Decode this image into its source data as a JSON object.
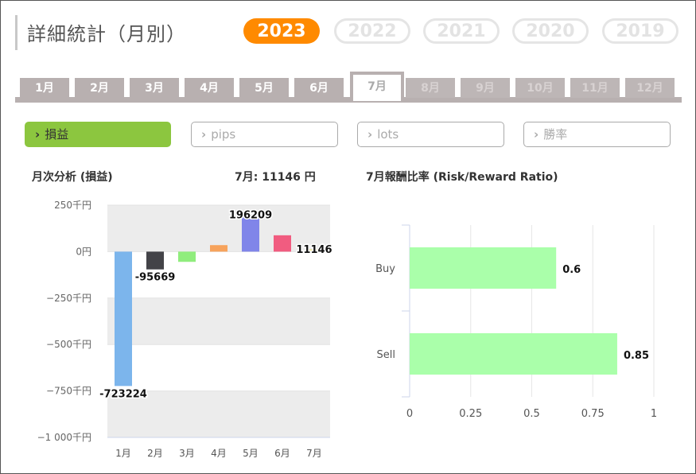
{
  "title": "詳細統計（月別）",
  "years": [
    "2023",
    "2022",
    "2021",
    "2020",
    "2019"
  ],
  "active_year": "2023",
  "months": [
    "1月",
    "2月",
    "3月",
    "4月",
    "5月",
    "6月",
    "7月",
    "8月",
    "9月",
    "10月",
    "11月",
    "12月"
  ],
  "active_month": "7月",
  "metric_buttons": [
    {
      "label": "損益",
      "active": true
    },
    {
      "label": "pips",
      "active": false
    },
    {
      "label": "lots",
      "active": false
    },
    {
      "label": "勝率",
      "active": false
    }
  ],
  "chevron": "›",
  "colors": {
    "accent": "#ff8a00",
    "active_metric": "#8cc63f",
    "tab": "#b8b0b0"
  },
  "left_chart_header": {
    "title": "月次分析 (損益)",
    "summary": "7月:  11146 円"
  },
  "right_chart_header": {
    "title": "7月報酬比率 (Risk/Reward Ratio)"
  },
  "chart_data": [
    {
      "type": "bar",
      "categories": [
        "1月",
        "2月",
        "3月",
        "4月",
        "5月",
        "6月",
        "7月"
      ],
      "values": [
        -723224,
        -95669,
        -55000,
        35000,
        196209,
        88000,
        11146
      ],
      "data_labels": [
        "-723224",
        "-95669",
        "",
        "",
        "196209",
        "",
        "11146"
      ],
      "colors": [
        "#7cb5ec",
        "#434348",
        "#90ed7d",
        "#f7a35c",
        "#8085e9",
        "#f15c80",
        "#e4d354"
      ],
      "ylim": [
        -1000000,
        250000
      ],
      "yticks": [
        250000,
        0,
        -250000,
        -500000,
        -750000,
        -1000000
      ],
      "ytick_labels": [
        "250千円",
        "0円",
        "−250千円",
        "−500千円",
        "−750千円",
        "−1 000千円"
      ]
    },
    {
      "type": "bar",
      "orientation": "horizontal",
      "categories": [
        "Buy",
        "Sell"
      ],
      "values": [
        0.6,
        0.85
      ],
      "data_labels": [
        "0.6",
        "0.85"
      ],
      "color": "#aaffaa",
      "xlim": [
        0,
        1
      ],
      "xticks": [
        0,
        0.25,
        0.5,
        0.75,
        1
      ],
      "xtick_labels": [
        "0",
        "0.25",
        "0.5",
        "0.75",
        "1"
      ]
    }
  ]
}
